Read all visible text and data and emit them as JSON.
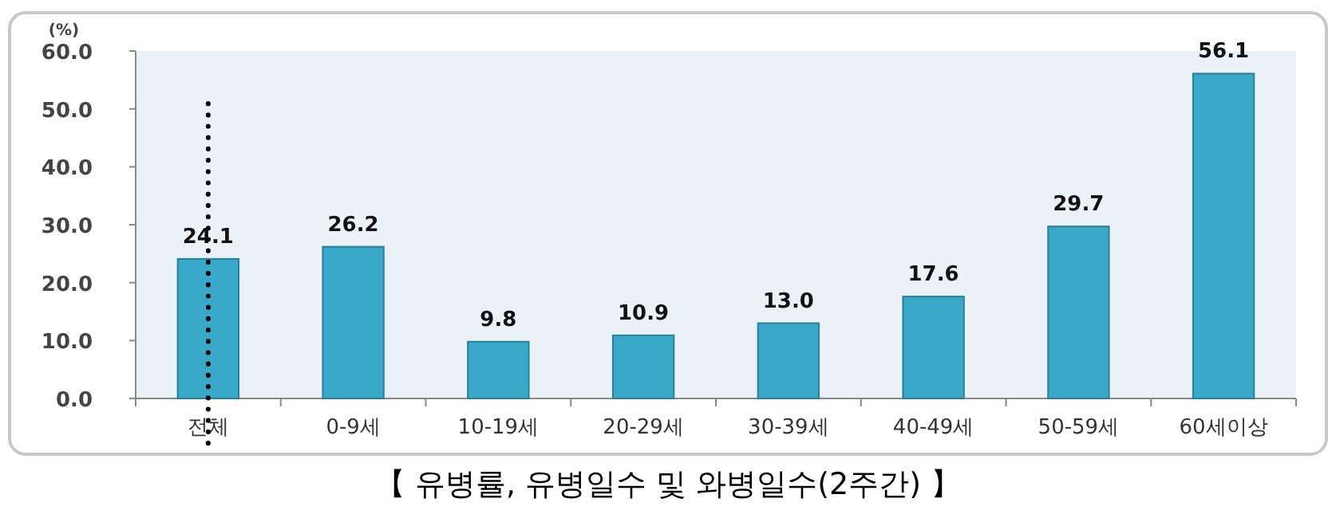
{
  "chart_data": {
    "type": "bar",
    "title": "【 유병률, 유병일수 및 와병일수(2주간) 】",
    "ylabel": "(%)",
    "categories": [
      "전체",
      "0-9세",
      "10-19세",
      "20-29세",
      "30-39세",
      "40-49세",
      "50-59세",
      "60세이상"
    ],
    "values": [
      24.1,
      26.2,
      9.8,
      10.9,
      13.0,
      17.6,
      29.7,
      56.1
    ],
    "value_labels": [
      "24.1",
      "26.2",
      "9.8",
      "10.9",
      "13.0",
      "17.6",
      "29.7",
      "56.1"
    ],
    "color": "#3aa8c8",
    "grid": false,
    "ylim": [
      0,
      60
    ],
    "yticks": [
      {
        "value": 0,
        "label": "0.0"
      },
      {
        "value": 10,
        "label": "10.0"
      },
      {
        "value": 20,
        "label": "20.0"
      },
      {
        "value": 30,
        "label": "30.0"
      },
      {
        "value": 40,
        "label": "40.0"
      },
      {
        "value": 50,
        "label": "50.0"
      },
      {
        "value": 60,
        "label": "60.0"
      }
    ],
    "ref_lines": [
      {
        "axis": "x",
        "value": "전체",
        "line_style": "dotted",
        "color": "#000000"
      }
    ]
  }
}
